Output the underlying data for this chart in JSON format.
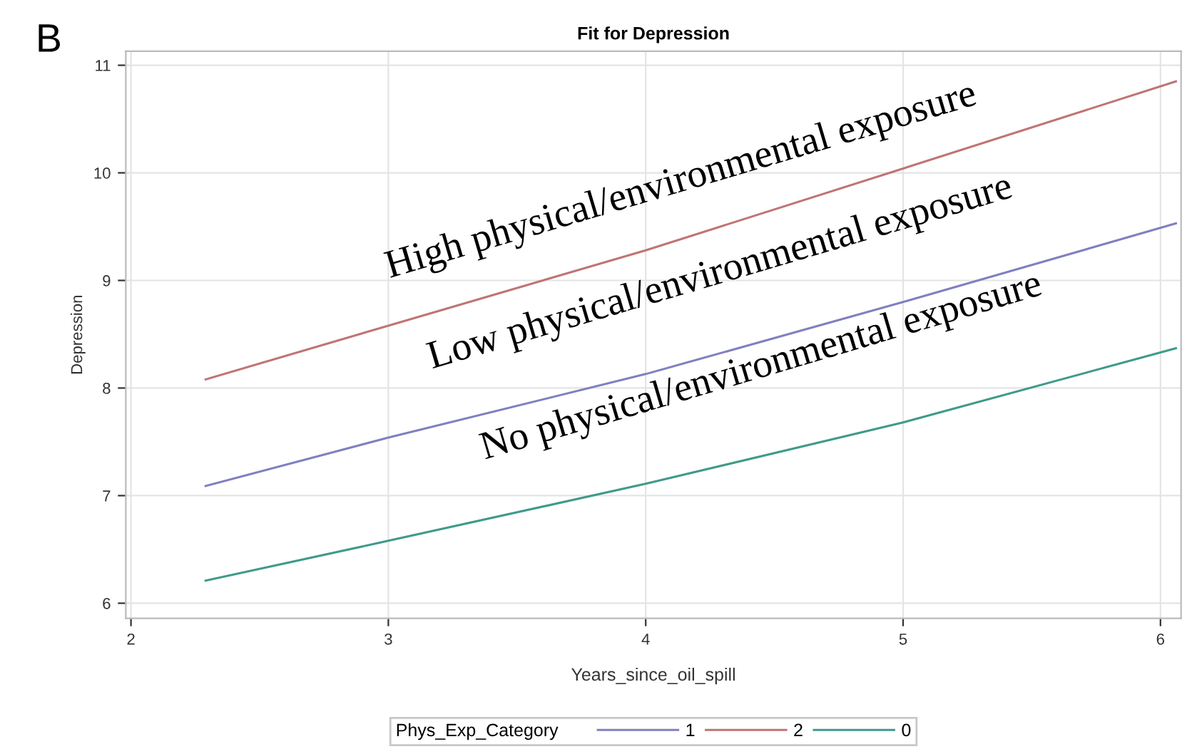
{
  "chart_data": {
    "type": "line",
    "title": "Fit for Depression",
    "xlabel": "Years_since_oil_spill",
    "ylabel": "Depression",
    "legend_title": "Phys_Exp_Category",
    "x": [
      2.29,
      3,
      4,
      5,
      6.06
    ],
    "series": [
      {
        "name": "1",
        "color": "#7f80c0",
        "values": [
          7.09,
          7.54,
          8.13,
          8.8,
          9.53
        ]
      },
      {
        "name": "2",
        "color": "#c07474",
        "values": [
          8.08,
          8.58,
          9.28,
          10.04,
          10.85
        ]
      },
      {
        "name": "0",
        "color": "#3f9a8a",
        "values": [
          6.21,
          6.58,
          7.11,
          7.68,
          8.37
        ]
      }
    ],
    "annotations": [
      "B",
      "High physical/environmental exposure",
      "Low physical/environmental exposure",
      "No physical/environmental exposure"
    ],
    "xlim": [
      1.98,
      6.08
    ],
    "ylim": [
      5.86,
      11.13
    ],
    "xticks": [
      2,
      3,
      4,
      5,
      6
    ],
    "yticks": [
      6,
      7,
      8,
      9,
      10,
      11
    ],
    "grid": true,
    "legend": "bottom",
    "marker": "none",
    "line_style": "solid"
  }
}
